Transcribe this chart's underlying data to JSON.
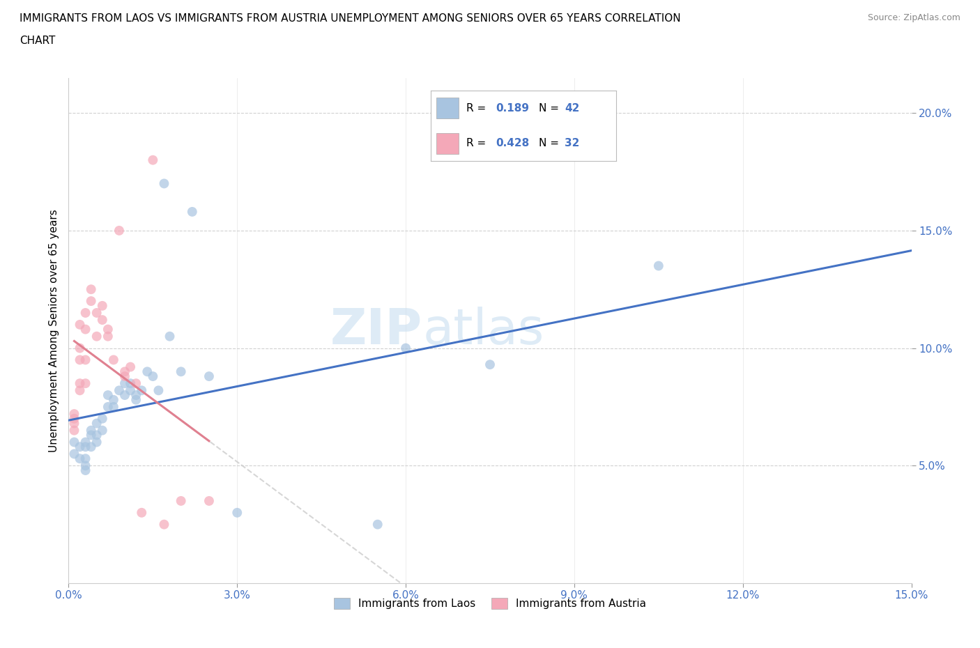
{
  "title_line1": "IMMIGRANTS FROM LAOS VS IMMIGRANTS FROM AUSTRIA UNEMPLOYMENT AMONG SENIORS OVER 65 YEARS CORRELATION",
  "title_line2": "CHART",
  "source": "Source: ZipAtlas.com",
  "ylabel": "Unemployment Among Seniors over 65 years",
  "xlim": [
    0.0,
    0.15
  ],
  "ylim": [
    0.0,
    0.215
  ],
  "xticks": [
    0.0,
    0.03,
    0.06,
    0.09,
    0.12,
    0.15
  ],
  "yticks": [
    0.05,
    0.1,
    0.15,
    0.2
  ],
  "watermark_zip": "ZIP",
  "watermark_atlas": "atlas",
  "laos_x": [
    0.001,
    0.001,
    0.002,
    0.002,
    0.003,
    0.003,
    0.003,
    0.003,
    0.003,
    0.004,
    0.004,
    0.004,
    0.005,
    0.005,
    0.005,
    0.006,
    0.006,
    0.007,
    0.007,
    0.008,
    0.008,
    0.009,
    0.01,
    0.01,
    0.011,
    0.011,
    0.012,
    0.012,
    0.013,
    0.014,
    0.015,
    0.016,
    0.017,
    0.018,
    0.02,
    0.022,
    0.025,
    0.03,
    0.055,
    0.075,
    0.105,
    0.06
  ],
  "laos_y": [
    0.06,
    0.055,
    0.058,
    0.053,
    0.06,
    0.058,
    0.053,
    0.05,
    0.048,
    0.065,
    0.063,
    0.058,
    0.068,
    0.063,
    0.06,
    0.07,
    0.065,
    0.075,
    0.08,
    0.075,
    0.078,
    0.082,
    0.08,
    0.085,
    0.082,
    0.085,
    0.078,
    0.08,
    0.082,
    0.09,
    0.088,
    0.082,
    0.17,
    0.105,
    0.09,
    0.158,
    0.088,
    0.03,
    0.025,
    0.093,
    0.135,
    0.1
  ],
  "austria_x": [
    0.001,
    0.001,
    0.001,
    0.001,
    0.002,
    0.002,
    0.002,
    0.002,
    0.002,
    0.003,
    0.003,
    0.003,
    0.003,
    0.004,
    0.004,
    0.005,
    0.005,
    0.006,
    0.006,
    0.007,
    0.007,
    0.008,
    0.009,
    0.01,
    0.01,
    0.011,
    0.012,
    0.013,
    0.015,
    0.017,
    0.02,
    0.025
  ],
  "austria_y": [
    0.07,
    0.072,
    0.068,
    0.065,
    0.085,
    0.082,
    0.095,
    0.1,
    0.11,
    0.115,
    0.108,
    0.095,
    0.085,
    0.12,
    0.125,
    0.105,
    0.115,
    0.118,
    0.112,
    0.105,
    0.108,
    0.095,
    0.15,
    0.088,
    0.09,
    0.092,
    0.085,
    0.03,
    0.18,
    0.025,
    0.035,
    0.035
  ],
  "laos_color": "#a8c4e0",
  "austria_color": "#f4a8b8",
  "laos_line_color": "#4472c4",
  "austria_line_color": "#e08090",
  "laos_r": 0.189,
  "laos_n": 42,
  "austria_r": 0.428,
  "austria_n": 32,
  "dot_size": 100,
  "dot_alpha": 0.7,
  "line_width": 2.2
}
